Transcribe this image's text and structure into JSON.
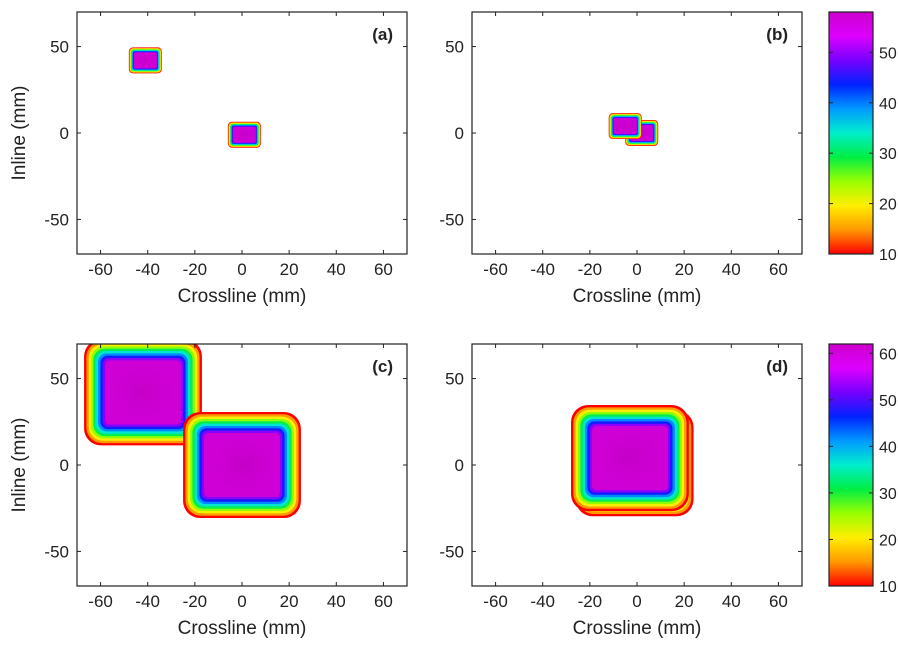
{
  "chart_data": [
    {
      "type": "contour",
      "panel_label": "(a)",
      "xlabel": "Crossline (mm)",
      "ylabel": "Inline (mm)",
      "xlim": [
        -70,
        70
      ],
      "ylim": [
        -70,
        70
      ],
      "xticks": [
        -60,
        -40,
        -20,
        0,
        20,
        40,
        60
      ],
      "yticks": [
        -50,
        0,
        50
      ],
      "shapes": [
        {
          "center_x": -41,
          "center_y": 42,
          "width": 14,
          "height": 11,
          "min": 10,
          "max": 58
        },
        {
          "center_x": 1,
          "center_y": -1,
          "width": 14,
          "height": 11,
          "min": 10,
          "max": 58
        }
      ]
    },
    {
      "type": "contour",
      "panel_label": "(b)",
      "xlabel": "Crossline (mm)",
      "ylabel": "",
      "xlim": [
        -70,
        70
      ],
      "ylim": [
        -70,
        70
      ],
      "xticks": [
        -60,
        -40,
        -20,
        0,
        20,
        40,
        60
      ],
      "yticks": [
        -50,
        0,
        50
      ],
      "shapes": [
        {
          "center_x": 2,
          "center_y": 0,
          "width": 14,
          "height": 11,
          "min": 10,
          "max": 58
        },
        {
          "center_x": -5,
          "center_y": 4,
          "width": 14,
          "height": 11,
          "min": 10,
          "max": 58
        }
      ]
    },
    {
      "type": "contour",
      "panel_label": "(c)",
      "xlabel": "Crossline (mm)",
      "ylabel": "Inline (mm)",
      "xlim": [
        -70,
        70
      ],
      "ylim": [
        -70,
        70
      ],
      "xticks": [
        -60,
        -40,
        -20,
        0,
        20,
        40,
        60
      ],
      "yticks": [
        -50,
        0,
        50
      ],
      "shapes": [
        {
          "center_x": -42,
          "center_y": 42,
          "width": 50,
          "height": 45,
          "min": 10,
          "max": 62
        },
        {
          "center_x": 0,
          "center_y": 0,
          "width": 50,
          "height": 45,
          "min": 10,
          "max": 62
        }
      ]
    },
    {
      "type": "contour",
      "panel_label": "(d)",
      "xlabel": "Crossline (mm)",
      "ylabel": "",
      "xlim": [
        -70,
        70
      ],
      "ylim": [
        -70,
        70
      ],
      "xticks": [
        -60,
        -40,
        -20,
        0,
        20,
        40,
        60
      ],
      "yticks": [
        -50,
        0,
        50
      ],
      "shapes": [
        {
          "center_x": -1,
          "center_y": 1,
          "width": 50,
          "height": 45,
          "min": 10,
          "max": 62
        },
        {
          "center_x": -3,
          "center_y": 4,
          "width": 50,
          "height": 45,
          "min": 10,
          "max": 62
        }
      ]
    }
  ],
  "colorbars": [
    {
      "min": 10,
      "max": 58,
      "ticks": [
        10,
        20,
        30,
        40,
        50
      ]
    },
    {
      "min": 10,
      "max": 62,
      "ticks": [
        10,
        20,
        30,
        40,
        50,
        60
      ]
    }
  ],
  "colormap": [
    "#ff0000",
    "#ff9900",
    "#ffee00",
    "#99ff00",
    "#00ee44",
    "#00eecc",
    "#0099ff",
    "#0022ff",
    "#7700ff",
    "#dd00ff",
    "#cc00cc"
  ]
}
